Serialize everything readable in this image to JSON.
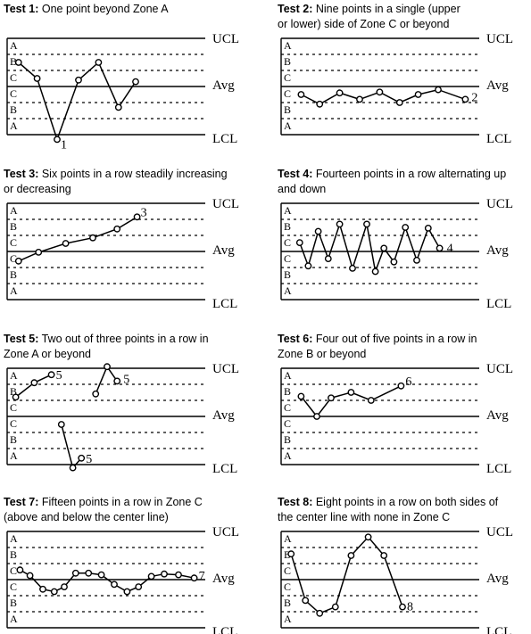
{
  "limit_labels": {
    "ucl": "UCL",
    "avg": "Avg",
    "lcl": "LCL"
  },
  "zone_letters": [
    "A",
    "B",
    "C",
    "C",
    "B",
    "A"
  ],
  "tests": [
    {
      "id": "test-1",
      "label": "Test 1:",
      "caption": [
        "One point beyond Zone A"
      ],
      "segments": [
        [
          [
            0.8,
            1.5
          ],
          [
            2.1,
            0.5
          ],
          [
            3.5,
            -3.3
          ],
          [
            5.0,
            0.4
          ],
          [
            6.4,
            1.5
          ],
          [
            7.8,
            -1.3
          ],
          [
            9.0,
            0.3
          ]
        ]
      ],
      "annotations": [
        {
          "text": "1",
          "at": [
            3.5,
            -3.3
          ],
          "dx": 4,
          "dy": 10
        }
      ]
    },
    {
      "id": "test-2",
      "label": "Test 2:",
      "caption": [
        "Nine points in a single (upper",
        "or lower) side of Zone C or beyond"
      ],
      "segments": [
        [
          [
            1.4,
            -0.5
          ],
          [
            2.7,
            -1.1
          ],
          [
            4.1,
            -0.4
          ],
          [
            5.5,
            -0.8
          ],
          [
            6.9,
            -0.35
          ],
          [
            8.3,
            -1.0
          ],
          [
            9.6,
            -0.5
          ],
          [
            11.0,
            -0.2
          ],
          [
            12.9,
            -0.8
          ]
        ]
      ],
      "annotations": [
        {
          "text": "2",
          "at": [
            12.9,
            -0.8
          ],
          "dx": 7,
          "dy": 2
        }
      ]
    },
    {
      "id": "test-3",
      "label": "Test 3:",
      "caption": [
        "Six points in a row steadily increasing",
        "or decreasing"
      ],
      "segments": [
        [
          [
            0.8,
            -0.6
          ],
          [
            2.2,
            -0.05
          ],
          [
            4.1,
            0.5
          ],
          [
            6.0,
            0.85
          ],
          [
            7.7,
            1.4
          ],
          [
            9.1,
            2.15
          ]
        ]
      ],
      "annotations": [
        {
          "text": "3",
          "at": [
            9.1,
            2.15
          ],
          "dx": 4,
          "dy": -1
        }
      ]
    },
    {
      "id": "test-4",
      "label": "Test 4:",
      "caption": [
        "Fourteen points in a row alternating up",
        "and down"
      ],
      "segments": [
        [
          [
            1.3,
            0.55
          ],
          [
            1.9,
            -0.9
          ],
          [
            2.6,
            1.25
          ],
          [
            3.3,
            -0.45
          ],
          [
            4.1,
            1.7
          ],
          [
            5.0,
            -1.05
          ],
          [
            6.0,
            1.7
          ],
          [
            6.6,
            -1.25
          ],
          [
            7.2,
            0.2
          ],
          [
            7.9,
            -0.65
          ],
          [
            8.7,
            1.5
          ],
          [
            9.5,
            -0.55
          ],
          [
            10.3,
            1.45
          ],
          [
            11.1,
            0.2
          ]
        ]
      ],
      "annotations": [
        {
          "text": "4",
          "at": [
            11.1,
            0.2
          ],
          "dx": 8,
          "dy": 4
        }
      ]
    },
    {
      "id": "test-5",
      "label": "Test 5:",
      "caption": [
        "Two out of three points in a row in",
        "Zone A or beyond"
      ],
      "segments": [
        [
          [
            0.6,
            1.2
          ],
          [
            1.9,
            2.1
          ],
          [
            3.1,
            2.6
          ]
        ],
        [
          [
            3.8,
            -0.5
          ],
          [
            4.6,
            -3.2
          ],
          [
            5.2,
            -2.6
          ]
        ],
        [
          [
            6.2,
            1.4
          ],
          [
            7.0,
            3.1
          ],
          [
            7.7,
            2.2
          ]
        ]
      ],
      "annotations": [
        {
          "text": "5",
          "at": [
            3.1,
            2.6
          ],
          "dx": 5,
          "dy": 5
        },
        {
          "text": "5",
          "at": [
            5.2,
            -2.6
          ],
          "dx": 5,
          "dy": 5
        },
        {
          "text": "5",
          "at": [
            7.7,
            2.2
          ],
          "dx": 7,
          "dy": 2
        }
      ]
    },
    {
      "id": "test-6",
      "label": "Test 6:",
      "caption": [
        "Four out of five points in a row in",
        "Zone B or beyond"
      ],
      "segments": [
        [
          [
            1.4,
            1.25
          ],
          [
            2.5,
            0.0
          ],
          [
            3.5,
            1.15
          ],
          [
            4.9,
            1.5
          ],
          [
            6.3,
            1.0
          ],
          [
            8.4,
            1.9
          ]
        ]
      ],
      "annotations": [
        {
          "text": "6",
          "at": [
            8.4,
            1.9
          ],
          "dx": 5,
          "dy": -1
        }
      ]
    },
    {
      "id": "test-7",
      "label": "Test 7:",
      "caption": [
        "Fifteen points in a row in Zone C",
        "(above and below the center line)"
      ],
      "segments": [
        [
          [
            0.9,
            0.6
          ],
          [
            1.6,
            0.25
          ],
          [
            2.5,
            -0.6
          ],
          [
            3.3,
            -0.75
          ],
          [
            4.0,
            -0.45
          ],
          [
            4.8,
            0.4
          ],
          [
            5.7,
            0.4
          ],
          [
            6.6,
            0.3
          ],
          [
            7.5,
            -0.3
          ],
          [
            8.4,
            -0.75
          ],
          [
            9.2,
            -0.45
          ],
          [
            10.1,
            0.2
          ],
          [
            11.0,
            0.35
          ],
          [
            12.0,
            0.3
          ],
          [
            13.1,
            0.1
          ]
        ]
      ],
      "annotations": [
        {
          "text": "7",
          "at": [
            13.1,
            0.1
          ],
          "dx": 5,
          "dy": 2
        }
      ]
    },
    {
      "id": "test-8",
      "label": "Test 8:",
      "caption": [
        "Eight points in a row on both sides of",
        "the center line with none in Zone C"
      ],
      "segments": [
        [
          [
            0.7,
            1.6
          ],
          [
            1.7,
            -1.3
          ],
          [
            2.7,
            -2.1
          ],
          [
            3.8,
            -1.7
          ],
          [
            4.9,
            1.5
          ],
          [
            6.1,
            2.65
          ],
          [
            7.2,
            1.5
          ],
          [
            8.5,
            -1.7
          ]
        ]
      ],
      "annotations": [
        {
          "text": "8",
          "at": [
            8.5,
            -1.7
          ],
          "dx": 5,
          "dy": 4
        }
      ]
    }
  ]
}
